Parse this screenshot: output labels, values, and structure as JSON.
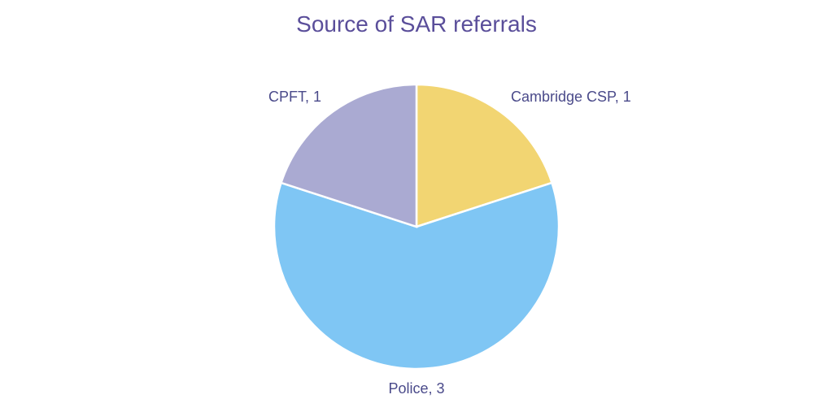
{
  "chart_data": {
    "type": "pie",
    "title": "Source of SAR referrals",
    "slices": [
      {
        "label": "Cambridge CSP",
        "value": 1,
        "color": "#f2d572",
        "display": "Cambridge CSP, 1"
      },
      {
        "label": "Police",
        "value": 3,
        "color": "#7fc6f4",
        "display": "Police, 3"
      },
      {
        "label": "CPFT",
        "value": 1,
        "color": "#aaaad2",
        "display": "CPFT, 1"
      }
    ],
    "start": "top",
    "direction": "clockwise",
    "legend": "none",
    "data_labels": "outside"
  }
}
